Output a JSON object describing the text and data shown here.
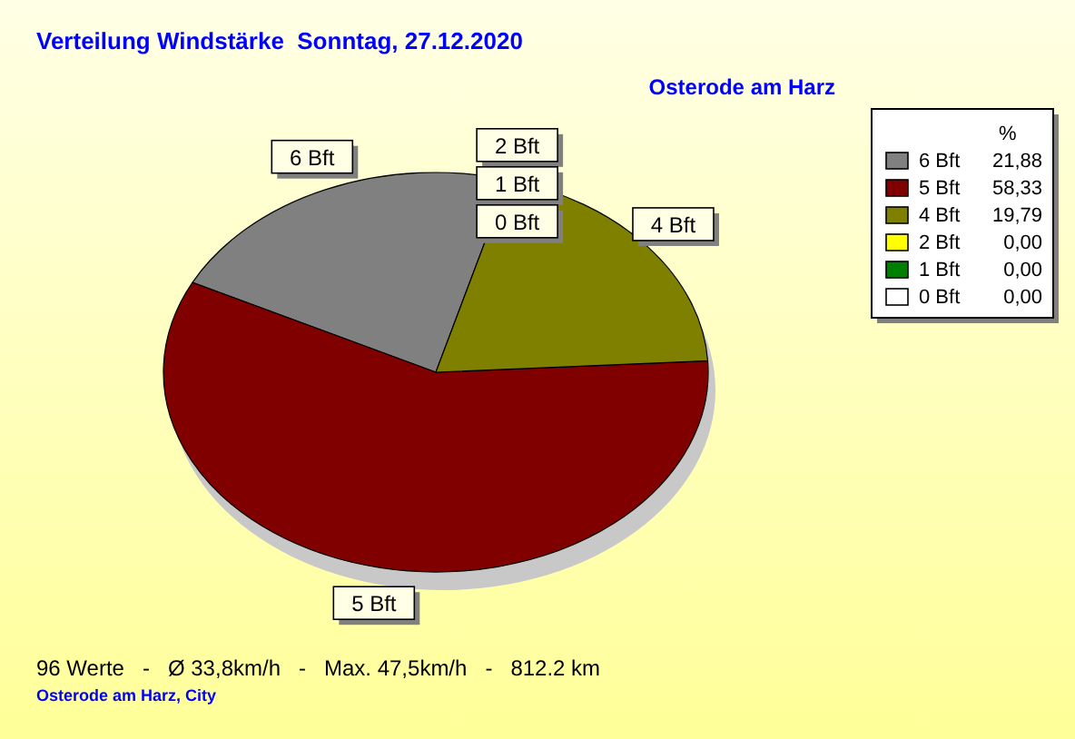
{
  "chart_data": {
    "type": "pie",
    "title": "Verteilung Windstärke  Sonntag, 27.12.2020",
    "subtitle": "Osterode am Harz",
    "legend_title": "%",
    "legend": "top right",
    "categories": [
      "6 Bft",
      "5 Bft",
      "4 Bft",
      "2 Bft",
      "1 Bft",
      "0 Bft"
    ],
    "values": [
      21.88,
      58.33,
      19.79,
      0,
      0,
      0
    ],
    "value_labels": [
      "21,88",
      "58,33",
      "19,79",
      "0,00",
      "0,00",
      "0,00"
    ],
    "colors": [
      "#808080",
      "#800000",
      "#808000",
      "#ffff00",
      "#008000",
      "#ffffff"
    ],
    "annotations": [
      "96 Werte   -   Ø 33,8km/h   -   Max. 47,5km/h   -   812.2 km",
      "Osterode am Harz, City"
    ]
  }
}
